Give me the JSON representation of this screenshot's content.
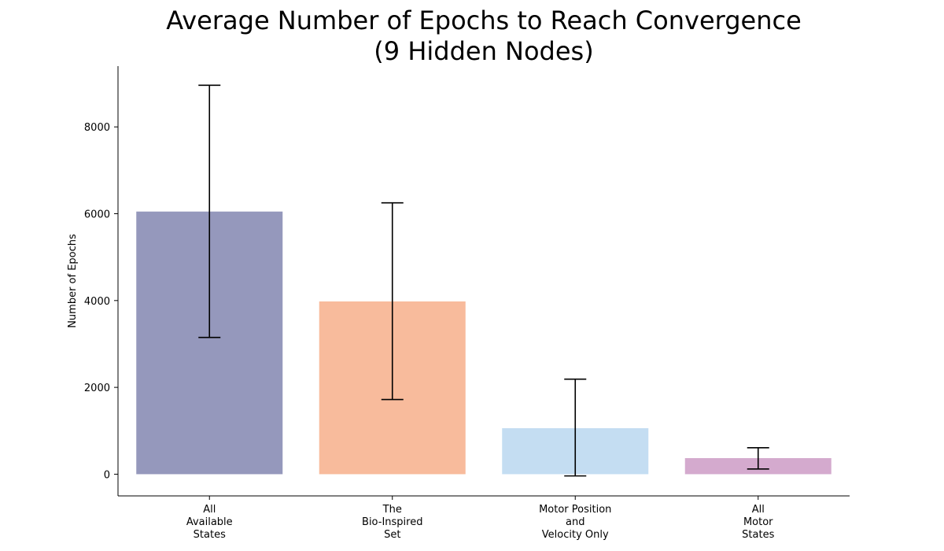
{
  "chart_data": {
    "type": "bar",
    "title_lines": [
      "Average Number of Epochs to Reach Convergence",
      "(9 Hidden Nodes)"
    ],
    "xlabel": "",
    "ylabel": "Number of Epochs",
    "ylim": [
      -500,
      9400
    ],
    "yticks": [
      0,
      2000,
      4000,
      6000,
      8000
    ],
    "grid": false,
    "categories": [
      [
        "All",
        "Available",
        "States"
      ],
      [
        "The",
        "Bio-Inspired",
        "Set"
      ],
      [
        "Motor Position",
        "and",
        "Velocity Only"
      ],
      [
        "All",
        "Motor",
        "States"
      ]
    ],
    "values": [
      6050,
      3980,
      1060,
      370
    ],
    "error_low": [
      3150,
      1720,
      -40,
      120
    ],
    "error_high": [
      8960,
      6250,
      2190,
      610
    ],
    "colors": [
      "#9598bc",
      "#f8bb9c",
      "#c4ddf2",
      "#d4aace"
    ]
  }
}
